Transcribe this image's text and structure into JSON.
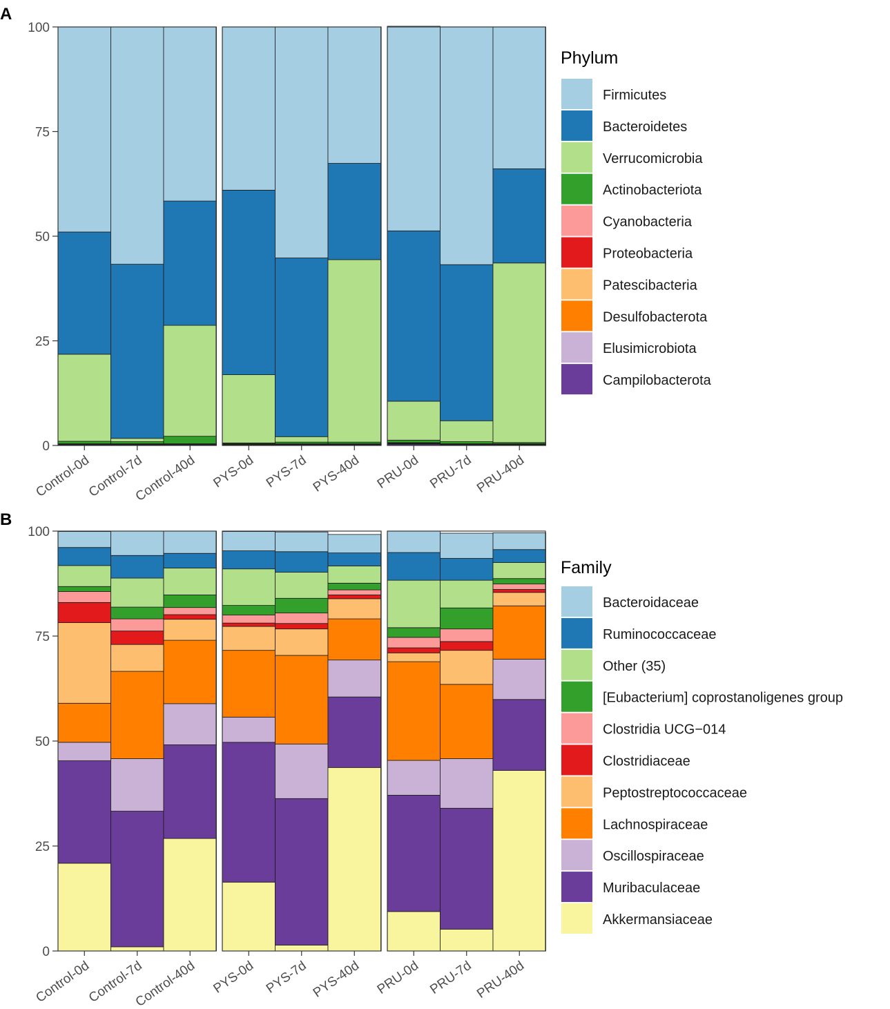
{
  "panels": [
    {
      "label": "A",
      "chart_data": {
        "type": "bar",
        "stacked": true,
        "title": "",
        "xlabel": "",
        "ylabel": "",
        "ylim": [
          0,
          100
        ],
        "yticks": [
          "0",
          "25",
          "50",
          "75",
          "100"
        ],
        "legend_title": "Phylum",
        "legend_position": "right",
        "groups": [
          [
            "Control-0d",
            "Control-7d",
            "Control-40d"
          ],
          [
            "PYS-0d",
            "PYS-7d",
            "PYS-40d"
          ],
          [
            "PRU-0d",
            "PRU-7d",
            "PRU-40d"
          ]
        ],
        "series": [
          {
            "name": "Firmicutes",
            "color": "#a6cee3",
            "values": [
              49.0,
              56.7,
              41.6,
              39.0,
              55.2,
              32.6,
              48.9,
              56.8,
              33.9
            ]
          },
          {
            "name": "Bacteroidetes",
            "color": "#1f78b4",
            "values": [
              29.2,
              41.6,
              29.7,
              44.1,
              42.7,
              23.0,
              40.7,
              37.3,
              22.5
            ]
          },
          {
            "name": "Verrucomicrobia",
            "color": "#b2df8a",
            "values": [
              20.8,
              0.8,
              26.5,
              16.3,
              1.3,
              43.6,
              9.3,
              5.0,
              42.9
            ]
          },
          {
            "name": "Actinobacteriota",
            "color": "#33a02c",
            "values": [
              0.6,
              0.5,
              1.8,
              0.2,
              0.4,
              0.4,
              0.6,
              0.5,
              0.3
            ]
          },
          {
            "name": "Cyanobacteria",
            "color": "#fb9a99",
            "values": [
              0.1,
              0.1,
              0.1,
              0.1,
              0.1,
              0.1,
              0.1,
              0.1,
              0.1
            ]
          },
          {
            "name": "Proteobacteria",
            "color": "#e31a1c",
            "values": [
              0.1,
              0.1,
              0.1,
              0.1,
              0.1,
              0.1,
              0.1,
              0.1,
              0.1
            ]
          },
          {
            "name": "Patescibacteria",
            "color": "#fdbf6f",
            "values": [
              0.1,
              0.1,
              0.1,
              0.1,
              0.1,
              0.1,
              0.1,
              0.1,
              0.1
            ]
          },
          {
            "name": "Desulfobacterota",
            "color": "#ff7f00",
            "values": [
              0.05,
              0.05,
              0.05,
              0.05,
              0.05,
              0.05,
              0.05,
              0.05,
              0.05
            ]
          },
          {
            "name": "Elusimicrobiota",
            "color": "#cab2d6",
            "values": [
              0.02,
              0.02,
              0.02,
              0.02,
              0.02,
              0.02,
              0.02,
              0.02,
              0.02
            ]
          },
          {
            "name": "Campilobacterota",
            "color": "#6a3d9a",
            "values": [
              0.03,
              0.03,
              0.03,
              0.03,
              0.03,
              0.03,
              0.3,
              0.03,
              0.03
            ]
          }
        ]
      }
    },
    {
      "label": "B",
      "chart_data": {
        "type": "bar",
        "stacked": true,
        "title": "",
        "xlabel": "",
        "ylabel": "",
        "ylim": [
          0,
          100
        ],
        "yticks": [
          "0",
          "25",
          "50",
          "75",
          "100"
        ],
        "legend_title": "Family",
        "legend_position": "right",
        "groups": [
          [
            "Control-0d",
            "Control-7d",
            "Control-40d"
          ],
          [
            "PYS-0d",
            "PYS-7d",
            "PYS-40d"
          ],
          [
            "PRU-0d",
            "PRU-7d",
            "PRU-40d"
          ]
        ],
        "series": [
          {
            "name": "Bacteroidaceae",
            "color": "#a6cee3",
            "values": [
              3.8,
              5.8,
              5.3,
              4.6,
              4.7,
              4.4,
              5.1,
              6.0,
              4.0
            ]
          },
          {
            "name": "Ruminococcaceae",
            "color": "#1f78b4",
            "values": [
              4.3,
              5.4,
              3.5,
              4.3,
              4.9,
              3.1,
              6.6,
              5.2,
              3.1
            ]
          },
          {
            "name": "Other (35)",
            "color": "#b2df8a",
            "values": [
              5.0,
              6.9,
              6.4,
              8.7,
              6.2,
              4.1,
              11.3,
              6.6,
              3.8
            ]
          },
          {
            "name": "[Eubacterium] coprostanoligenes group",
            "color": "#33a02c",
            "values": [
              1.2,
              2.8,
              3.0,
              2.3,
              3.5,
              1.6,
              2.3,
              5.0,
              1.3
            ]
          },
          {
            "name": "Clostridia UCG−014",
            "color": "#fb9a99",
            "values": [
              2.6,
              2.9,
              1.7,
              1.9,
              2.5,
              1.2,
              2.5,
              3.0,
              1.3
            ]
          },
          {
            "name": "Clostridiaceae",
            "color": "#e31a1c",
            "values": [
              4.8,
              3.2,
              1.1,
              0.8,
              1.3,
              0.9,
              1.2,
              2.1,
              0.7
            ]
          },
          {
            "name": "Peptostreptococcaceae",
            "color": "#fdbf6f",
            "values": [
              19.2,
              6.4,
              5.0,
              5.7,
              6.3,
              4.8,
              2.1,
              8.1,
              3.2
            ]
          },
          {
            "name": "Lachnospiraceae",
            "color": "#ff7f00",
            "values": [
              9.3,
              20.8,
              15.1,
              15.9,
              21.1,
              9.8,
              23.5,
              17.7,
              12.7
            ]
          },
          {
            "name": "Oscillospiraceae",
            "color": "#cab2d6",
            "values": [
              4.4,
              12.5,
              9.8,
              6.0,
              13.0,
              8.8,
              8.3,
              11.8,
              9.6
            ]
          },
          {
            "name": "Muribaculaceae",
            "color": "#6a3d9a",
            "values": [
              24.4,
              32.3,
              22.3,
              33.3,
              34.9,
              16.8,
              27.7,
              28.8,
              16.9
            ]
          },
          {
            "name": "Akkermansiaceae",
            "color": "#f8f59e",
            "values": [
              20.9,
              1.0,
              26.8,
              16.4,
              1.4,
              43.7,
              9.4,
              5.2,
              43.0
            ]
          }
        ]
      }
    }
  ]
}
